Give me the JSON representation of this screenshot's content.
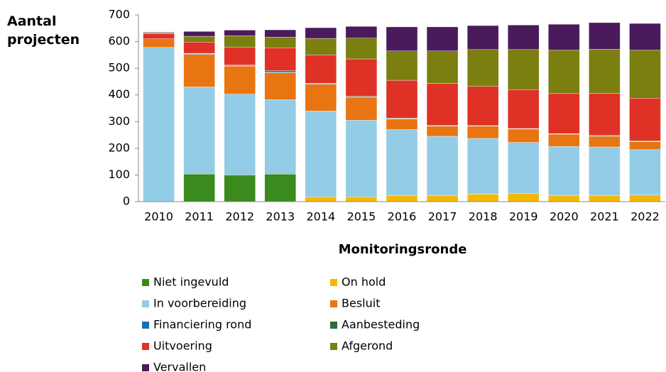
{
  "chart_data": {
    "type": "stacked_bar",
    "y_label": "Aantal projecten",
    "x_label": "Monitoringsronde",
    "categories": [
      "2010",
      "2011",
      "2012",
      "2013",
      "2014",
      "2015",
      "2016",
      "2017",
      "2018",
      "2019",
      "2020",
      "2021",
      "2022"
    ],
    "ylim": [
      0,
      700
    ],
    "yticks": [
      0,
      100,
      200,
      300,
      400,
      500,
      600,
      700
    ],
    "grid": false,
    "series": [
      {
        "name": "Niet ingevuld",
        "color": "#3a8a1e",
        "values": [
          0,
          103,
          100,
          103,
          0,
          0,
          0,
          0,
          0,
          0,
          0,
          0,
          0
        ]
      },
      {
        "name": "On hold",
        "color": "#f5b800",
        "values": [
          0,
          0,
          0,
          0,
          18,
          18,
          22,
          22,
          28,
          30,
          22,
          22,
          25
        ]
      },
      {
        "name": "In voorbereiding",
        "color": "#93cce6",
        "values": [
          578,
          327,
          303,
          279,
          322,
          287,
          248,
          223,
          209,
          192,
          185,
          183,
          170
        ]
      },
      {
        "name": "Besluit",
        "color": "#e87511",
        "values": [
          32,
          122,
          105,
          101,
          100,
          85,
          40,
          38,
          46,
          50,
          46,
          40,
          30
        ]
      },
      {
        "name": "Financiering rond",
        "color": "#1f6fae",
        "values": [
          0,
          2,
          2,
          3,
          2,
          2,
          1,
          1,
          1,
          1,
          1,
          1,
          1
        ]
      },
      {
        "name": "Aanbesteding",
        "color": "#2e6b3a",
        "values": [
          0,
          2,
          2,
          5,
          2,
          3,
          2,
          3,
          1,
          1,
          1,
          2,
          2
        ]
      },
      {
        "name": "Uitvoering",
        "color": "#e03127",
        "values": [
          20,
          42,
          66,
          86,
          106,
          140,
          142,
          156,
          147,
          146,
          150,
          158,
          160
        ]
      },
      {
        "name": "Afgerond",
        "color": "#7a7f0f",
        "values": [
          3,
          22,
          44,
          40,
          62,
          78,
          110,
          122,
          138,
          150,
          163,
          165,
          180
        ]
      },
      {
        "name": "Vervallen",
        "color": "#4a1a5c",
        "values": [
          2,
          18,
          21,
          27,
          40,
          44,
          90,
          90,
          90,
          92,
          97,
          100,
          100
        ]
      }
    ]
  }
}
